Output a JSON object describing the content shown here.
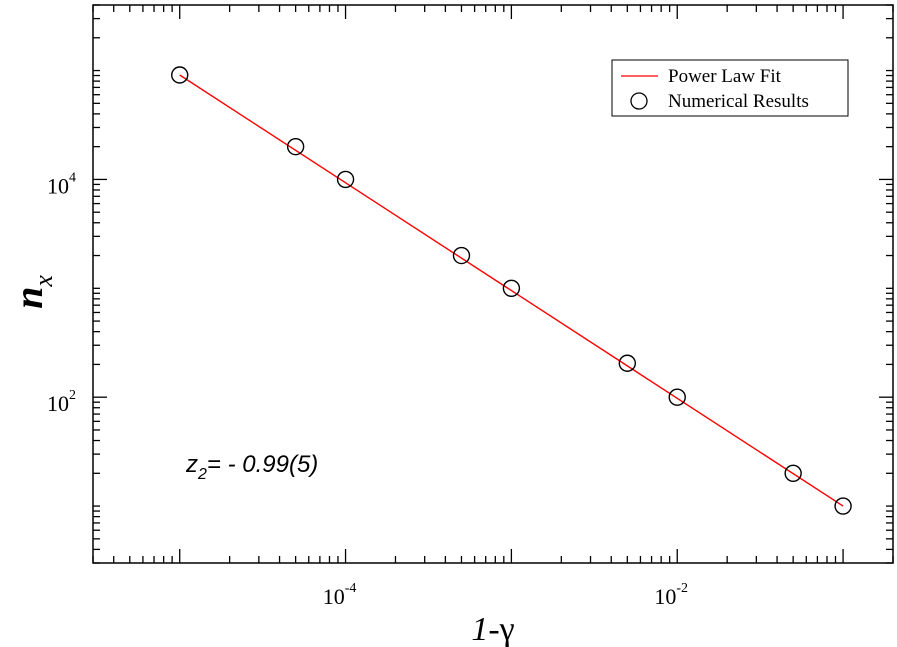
{
  "chart_data": {
    "type": "scatter",
    "x_scale": "log",
    "y_scale": "log",
    "xlim": [
      3e-06,
      0.2
    ],
    "ylim": [
      3,
      400000
    ],
    "xlabel": {
      "italic": "1",
      "rest": "-γ"
    },
    "ylabel": {
      "main": "n",
      "sub": "x"
    },
    "x_tick_labels": [
      {
        "value": 0.0001,
        "base": "10",
        "exp": "-4"
      },
      {
        "value": 0.01,
        "base": "10",
        "exp": "-2"
      }
    ],
    "y_tick_labels": [
      {
        "value": 100,
        "base": "10",
        "exp": "2"
      },
      {
        "value": 10000,
        "base": "10",
        "exp": "4"
      }
    ],
    "series": [
      {
        "name": "Numerical Results",
        "marker": "open-circle",
        "color": "#000000",
        "x": [
          1e-05,
          5e-05,
          0.0001,
          0.0005,
          0.001,
          0.005,
          0.01,
          0.05,
          0.1
        ],
        "y": [
          91000,
          20000,
          10000,
          2000,
          1000,
          205,
          100,
          20,
          10
        ]
      },
      {
        "name": "Power Law Fit",
        "marker": "line",
        "color": "#ff0000",
        "x": [
          1e-05,
          0.1
        ],
        "y": [
          91000,
          10
        ]
      }
    ],
    "legend": {
      "position": "top-right",
      "entries": [
        "Power Law Fit",
        "Numerical Results"
      ]
    },
    "annotation": {
      "var": "z",
      "sub": "2",
      "text": "= - 0.99(5)"
    },
    "grid": false
  }
}
